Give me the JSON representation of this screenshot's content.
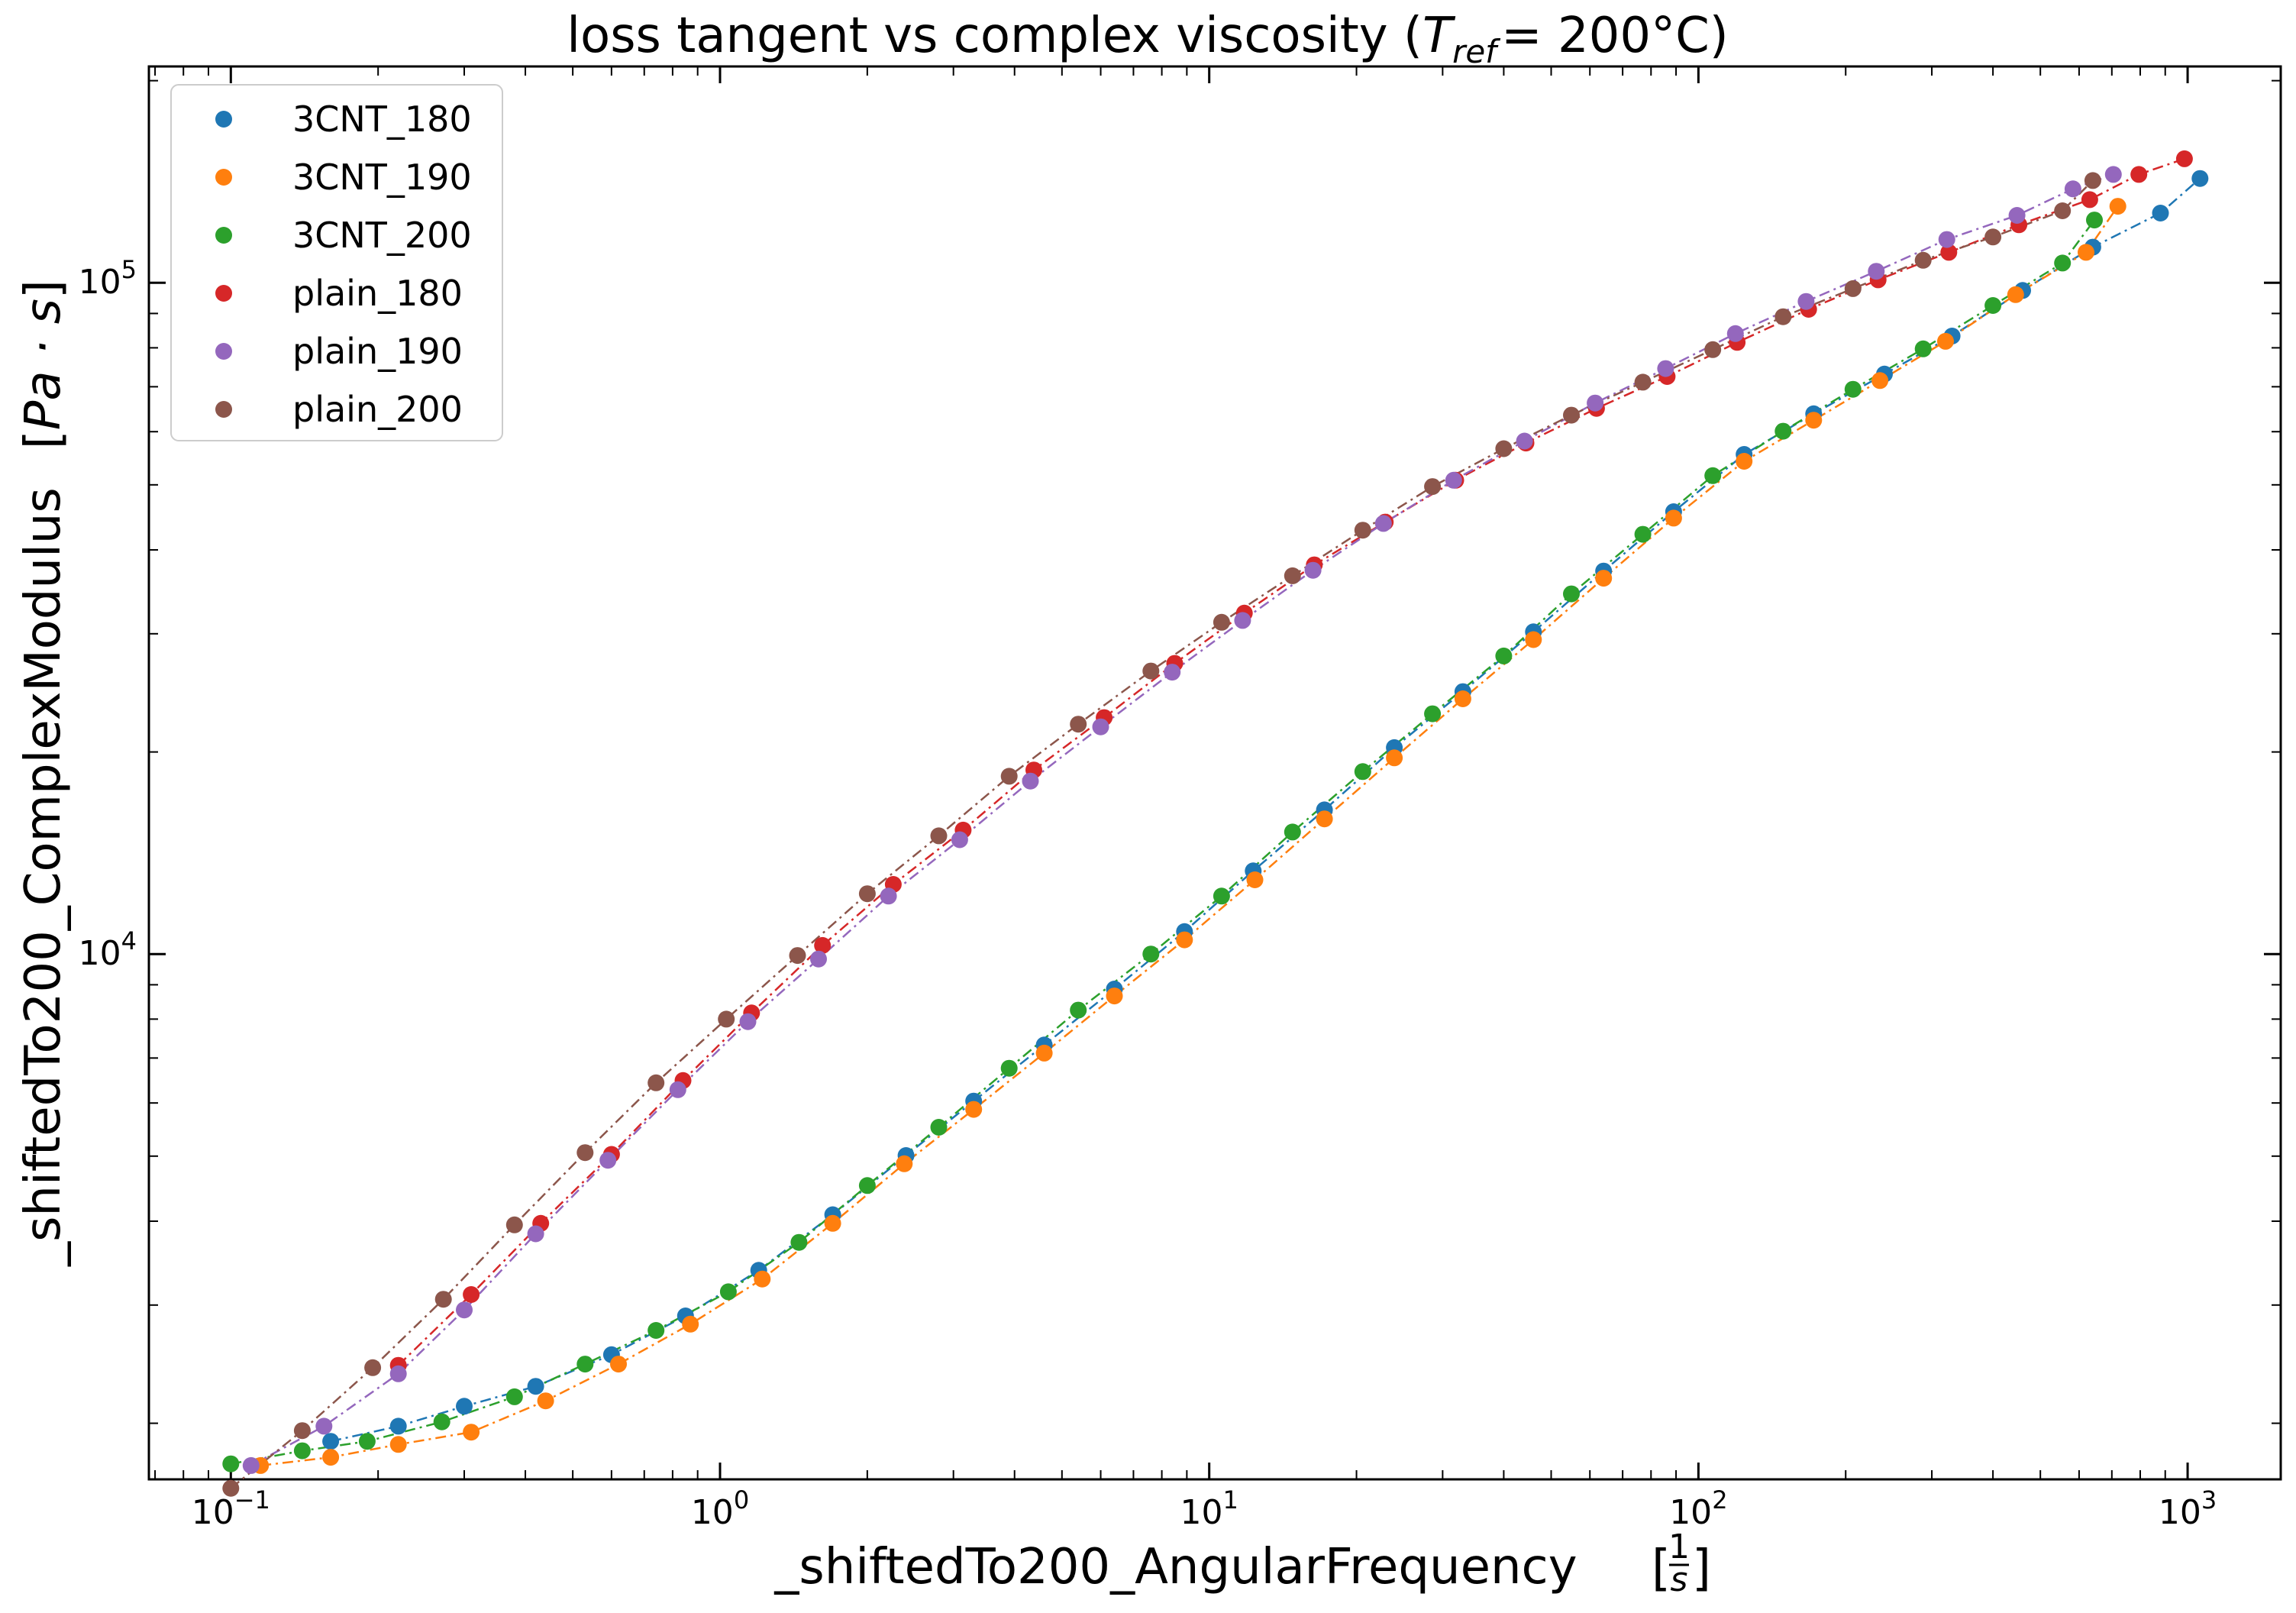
{
  "chart_data": {
    "type": "scatter",
    "title": "loss tangent vs complex viscosity",
    "title_suffix": "T",
    "title_sub": "ref",
    "title_eq": "= 200°C",
    "xlabel": "_shiftedTo200_AngularFrequency",
    "xunit": "1/s",
    "ylabel": "_shiftedTo200_ComplexModulus",
    "yunit": "Pa · s",
    "xscale": "log",
    "yscale": "log",
    "xlim": [
      0.068,
      1550
    ],
    "ylim": [
      1650,
      210000
    ],
    "x_ticks": [
      {
        "label": "10",
        "exp": "−1",
        "value": 0.1
      },
      {
        "label": "10",
        "exp": "0",
        "value": 1
      },
      {
        "label": "10",
        "exp": "1",
        "value": 10
      },
      {
        "label": "10",
        "exp": "2",
        "value": 100
      },
      {
        "label": "10",
        "exp": "3",
        "value": 1000
      }
    ],
    "y_ticks": [
      {
        "label": "10",
        "exp": "4",
        "value": 10000
      },
      {
        "label": "10",
        "exp": "5",
        "value": 100000
      }
    ],
    "legend_position": "top-left",
    "series": [
      {
        "name": "3CNT_180",
        "color": "#1f77b4",
        "points": [
          [
            0.16,
            1880
          ],
          [
            0.22,
            1980
          ],
          [
            0.3,
            2120
          ],
          [
            0.42,
            2270
          ],
          [
            0.6,
            2530
          ],
          [
            0.85,
            2890
          ],
          [
            1.2,
            3380
          ],
          [
            1.7,
            4090
          ],
          [
            2.4,
            5010
          ],
          [
            3.3,
            6040
          ],
          [
            4.6,
            7320
          ],
          [
            6.4,
            8870
          ],
          [
            8.9,
            10800
          ],
          [
            12.3,
            13300
          ],
          [
            17.2,
            16400
          ],
          [
            23.9,
            20300
          ],
          [
            33,
            24600
          ],
          [
            46,
            30200
          ],
          [
            64,
            37200
          ],
          [
            89,
            45600
          ],
          [
            124,
            55500
          ],
          [
            172,
            63800
          ],
          [
            240,
            73100
          ],
          [
            330,
            83300
          ],
          [
            460,
            97400
          ],
          [
            640,
            113000
          ],
          [
            880,
            127000
          ],
          [
            1060,
            143000
          ]
        ]
      },
      {
        "name": "3CNT_190",
        "color": "#ff7f0e",
        "points": [
          [
            0.115,
            1730
          ],
          [
            0.16,
            1780
          ],
          [
            0.22,
            1860
          ],
          [
            0.31,
            1940
          ],
          [
            0.44,
            2160
          ],
          [
            0.62,
            2450
          ],
          [
            0.87,
            2810
          ],
          [
            1.22,
            3280
          ],
          [
            1.7,
            3970
          ],
          [
            2.38,
            4870
          ],
          [
            3.3,
            5870
          ],
          [
            4.6,
            7120
          ],
          [
            6.4,
            8660
          ],
          [
            8.9,
            10500
          ],
          [
            12.4,
            12900
          ],
          [
            17.2,
            15900
          ],
          [
            23.9,
            19600
          ],
          [
            33,
            24000
          ],
          [
            46,
            29400
          ],
          [
            64,
            36300
          ],
          [
            89,
            44600
          ],
          [
            124,
            54200
          ],
          [
            172,
            62400
          ],
          [
            235,
            71500
          ],
          [
            320,
            81800
          ],
          [
            445,
            96000
          ],
          [
            620,
            111000
          ],
          [
            720,
            130000
          ]
        ]
      },
      {
        "name": "3CNT_200",
        "color": "#2ca02c",
        "points": [
          [
            0.1,
            1740
          ],
          [
            0.14,
            1820
          ],
          [
            0.19,
            1880
          ],
          [
            0.27,
            2010
          ],
          [
            0.38,
            2190
          ],
          [
            0.53,
            2450
          ],
          [
            0.74,
            2750
          ],
          [
            1.04,
            3140
          ],
          [
            1.45,
            3720
          ],
          [
            2.0,
            4520
          ],
          [
            2.8,
            5520
          ],
          [
            3.9,
            6760
          ],
          [
            5.4,
            8250
          ],
          [
            7.6,
            10000
          ],
          [
            10.6,
            12200
          ],
          [
            14.8,
            15200
          ],
          [
            20.6,
            18700
          ],
          [
            28.6,
            22800
          ],
          [
            40,
            27800
          ],
          [
            55,
            34400
          ],
          [
            77,
            42200
          ],
          [
            107,
            51600
          ],
          [
            149,
            60100
          ],
          [
            207,
            69400
          ],
          [
            288,
            79700
          ],
          [
            400,
            92500
          ],
          [
            555,
            107000
          ],
          [
            645,
            124000
          ]
        ]
      },
      {
        "name": "plain_180",
        "color": "#d62728",
        "points": [
          [
            0.22,
            2440
          ],
          [
            0.31,
            3110
          ],
          [
            0.43,
            3970
          ],
          [
            0.6,
            5030
          ],
          [
            0.84,
            6480
          ],
          [
            1.16,
            8170
          ],
          [
            1.62,
            10300
          ],
          [
            2.26,
            12700
          ],
          [
            3.14,
            15300
          ],
          [
            4.38,
            18800
          ],
          [
            6.1,
            22500
          ],
          [
            8.5,
            27100
          ],
          [
            11.8,
            32200
          ],
          [
            16.4,
            38000
          ],
          [
            22.9,
            44000
          ],
          [
            31.9,
            50800
          ],
          [
            44.4,
            57700
          ],
          [
            61.9,
            65000
          ],
          [
            86.3,
            72500
          ],
          [
            120,
            81500
          ],
          [
            168,
            91300
          ],
          [
            233,
            101000
          ],
          [
            325,
            111000
          ],
          [
            452,
            122000
          ],
          [
            631,
            133000
          ],
          [
            795,
            145000
          ],
          [
            985,
            153000
          ]
        ]
      },
      {
        "name": "plain_190",
        "color": "#9467bd",
        "points": [
          [
            0.11,
            1730
          ],
          [
            0.155,
            1980
          ],
          [
            0.22,
            2370
          ],
          [
            0.3,
            2950
          ],
          [
            0.42,
            3830
          ],
          [
            0.59,
            4930
          ],
          [
            0.82,
            6280
          ],
          [
            1.14,
            7930
          ],
          [
            1.59,
            9830
          ],
          [
            2.21,
            12200
          ],
          [
            3.09,
            14800
          ],
          [
            4.31,
            18100
          ],
          [
            6.0,
            21800
          ],
          [
            8.4,
            26300
          ],
          [
            11.7,
            31400
          ],
          [
            16.3,
            37300
          ],
          [
            22.7,
            43800
          ],
          [
            31.6,
            50800
          ],
          [
            44.1,
            58100
          ],
          [
            61.5,
            66200
          ],
          [
            85.7,
            74500
          ],
          [
            119,
            84000
          ],
          [
            166,
            93800
          ],
          [
            231,
            104000
          ],
          [
            322,
            116000
          ],
          [
            448,
            126000
          ],
          [
            583,
            138000
          ],
          [
            705,
            145000
          ]
        ]
      },
      {
        "name": "plain_200",
        "color": "#8c564b",
        "points": [
          [
            0.1,
            1600
          ],
          [
            0.14,
            1950
          ],
          [
            0.195,
            2420
          ],
          [
            0.272,
            3060
          ],
          [
            0.38,
            3950
          ],
          [
            0.53,
            5060
          ],
          [
            0.74,
            6430
          ],
          [
            1.03,
            8000
          ],
          [
            1.44,
            9950
          ],
          [
            2.0,
            12300
          ],
          [
            2.8,
            15000
          ],
          [
            3.9,
            18400
          ],
          [
            5.4,
            22000
          ],
          [
            7.6,
            26400
          ],
          [
            10.6,
            31200
          ],
          [
            14.8,
            36600
          ],
          [
            20.6,
            42800
          ],
          [
            28.6,
            49700
          ],
          [
            40,
            56600
          ],
          [
            55,
            63500
          ],
          [
            77,
            71100
          ],
          [
            107,
            79500
          ],
          [
            149,
            89000
          ],
          [
            207,
            98000
          ],
          [
            288,
            108000
          ],
          [
            400,
            117000
          ],
          [
            555,
            128000
          ],
          [
            640,
            142000
          ]
        ]
      }
    ]
  }
}
